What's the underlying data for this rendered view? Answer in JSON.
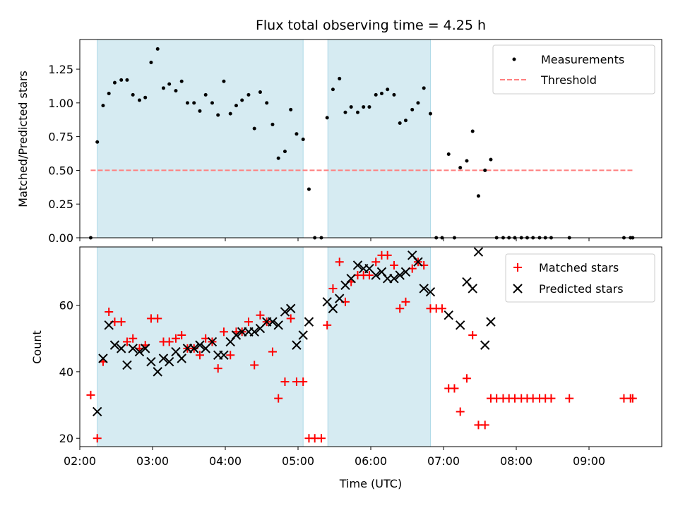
{
  "figure_title": "Flux total observing time = 4.25 h",
  "colors": {
    "shade": "#add8e6",
    "measurement": "#000000",
    "threshold": "#ff7f7f",
    "matched": "#ff0000",
    "predicted": "#000000"
  },
  "chart_data": [
    {
      "type": "scatter",
      "ylabel": "Matched/Predicted stars",
      "xlim": [
        2.0,
        10.0
      ],
      "ylim": [
        0.0,
        1.47
      ],
      "yticks": [
        0.0,
        0.25,
        0.5,
        0.75,
        1.0,
        1.25
      ],
      "ytick_labels": [
        "0.00",
        "0.25",
        "0.50",
        "0.75",
        "1.00",
        "1.25"
      ],
      "legend_position": "top-right",
      "shaded_spans": [
        [
          2.24,
          5.07
        ],
        [
          5.41,
          6.82
        ]
      ],
      "threshold": {
        "name": "Threshold",
        "y": 0.5,
        "x": [
          2.15,
          9.6
        ]
      },
      "series": [
        {
          "name": "Measurements",
          "x": [
            2.15,
            2.24,
            2.32,
            2.4,
            2.48,
            2.57,
            2.65,
            2.73,
            2.82,
            2.9,
            2.98,
            3.07,
            3.15,
            3.23,
            3.32,
            3.4,
            3.48,
            3.57,
            3.65,
            3.73,
            3.82,
            3.9,
            3.98,
            4.07,
            4.15,
            4.23,
            4.32,
            4.4,
            4.48,
            4.57,
            4.65,
            4.73,
            4.82,
            4.9,
            4.98,
            5.07,
            5.15,
            5.23,
            5.32,
            5.4,
            5.48,
            5.57,
            5.65,
            5.73,
            5.82,
            5.9,
            5.98,
            6.07,
            6.15,
            6.23,
            6.32,
            6.4,
            6.48,
            6.57,
            6.65,
            6.73,
            6.82,
            6.9,
            6.98,
            7.07,
            7.15,
            7.23,
            7.32,
            7.4,
            7.48,
            7.57,
            7.65,
            7.73,
            7.82,
            7.9,
            7.98,
            8.07,
            8.15,
            8.23,
            8.32,
            8.4,
            8.48,
            8.73,
            9.48,
            9.57,
            9.6
          ],
          "y": [
            0.0,
            0.71,
            0.98,
            1.07,
            1.15,
            1.17,
            1.17,
            1.06,
            1.02,
            1.04,
            1.3,
            1.4,
            1.11,
            1.14,
            1.09,
            1.16,
            1.0,
            1.0,
            0.94,
            1.06,
            1.0,
            0.91,
            1.16,
            0.92,
            0.98,
            1.02,
            1.06,
            0.81,
            1.08,
            1.0,
            0.84,
            0.59,
            0.64,
            0.95,
            0.77,
            0.73,
            0.36,
            0.0,
            0.0,
            0.89,
            1.1,
            1.18,
            0.93,
            0.97,
            0.93,
            0.97,
            0.97,
            1.06,
            1.07,
            1.1,
            1.06,
            0.85,
            0.87,
            0.95,
            1.0,
            1.11,
            0.92,
            0.0,
            0.0,
            0.62,
            0.0,
            0.52,
            0.57,
            0.79,
            0.31,
            0.5,
            0.58,
            0.0,
            0.0,
            0.0,
            0.0,
            0.0,
            0.0,
            0.0,
            0.0,
            0.0,
            0.0,
            0.0,
            0.0,
            0.0,
            0.0
          ]
        }
      ]
    },
    {
      "type": "scatter",
      "ylabel": "Count",
      "xlabel": "Time (UTC)",
      "xlim": [
        2.0,
        10.0
      ],
      "ylim": [
        17.5,
        77.5
      ],
      "yticks": [
        20,
        40,
        60
      ],
      "ytick_labels": [
        "20",
        "40",
        "60"
      ],
      "xticks": [
        2,
        3,
        4,
        5,
        6,
        7,
        8,
        9
      ],
      "xtick_labels": [
        "02:00",
        "03:00",
        "04:00",
        "05:00",
        "06:00",
        "07:00",
        "08:00",
        "09:00"
      ],
      "legend_position": "top-right",
      "shaded_spans": [
        [
          2.24,
          5.07
        ],
        [
          5.41,
          6.82
        ]
      ],
      "series": [
        {
          "name": "Matched stars",
          "marker": "plus",
          "x": [
            2.15,
            2.24,
            2.32,
            2.4,
            2.48,
            2.57,
            2.65,
            2.73,
            2.82,
            2.9,
            2.98,
            3.07,
            3.15,
            3.23,
            3.32,
            3.4,
            3.48,
            3.57,
            3.65,
            3.73,
            3.82,
            3.9,
            3.98,
            4.07,
            4.15,
            4.23,
            4.32,
            4.4,
            4.48,
            4.57,
            4.65,
            4.73,
            4.82,
            4.9,
            4.98,
            5.07,
            5.15,
            5.23,
            5.32,
            5.4,
            5.48,
            5.57,
            5.65,
            5.73,
            5.82,
            5.9,
            5.98,
            6.07,
            6.15,
            6.23,
            6.32,
            6.4,
            6.48,
            6.57,
            6.65,
            6.73,
            6.82,
            6.9,
            6.98,
            7.07,
            7.15,
            7.23,
            7.32,
            7.4,
            7.48,
            7.57,
            7.65,
            7.73,
            7.82,
            7.9,
            7.98,
            8.07,
            8.15,
            8.23,
            8.32,
            8.4,
            8.48,
            8.73,
            9.48,
            9.57,
            9.6
          ],
          "y": [
            33,
            20,
            43,
            58,
            55,
            55,
            49,
            50,
            47,
            48,
            56,
            56,
            49,
            49,
            50,
            51,
            47,
            47,
            45,
            50,
            49,
            41,
            52,
            45,
            52,
            52,
            55,
            42,
            57,
            55,
            46,
            32,
            37,
            56,
            37,
            37,
            20,
            20,
            20,
            54,
            65,
            73,
            61,
            67,
            69,
            69,
            69,
            73,
            75,
            75,
            72,
            59,
            61,
            71,
            73,
            72,
            59,
            59,
            59,
            35,
            35,
            28,
            38,
            51,
            24,
            24,
            32,
            32,
            32,
            32,
            32,
            32,
            32,
            32,
            32,
            32,
            32,
            32,
            32,
            32,
            32
          ]
        },
        {
          "name": "Predicted stars",
          "marker": "x",
          "x": [
            2.24,
            2.32,
            2.4,
            2.48,
            2.57,
            2.65,
            2.73,
            2.82,
            2.9,
            2.98,
            3.07,
            3.15,
            3.23,
            3.32,
            3.4,
            3.48,
            3.57,
            3.65,
            3.73,
            3.82,
            3.9,
            3.98,
            4.07,
            4.15,
            4.23,
            4.32,
            4.4,
            4.48,
            4.57,
            4.65,
            4.73,
            4.82,
            4.9,
            4.98,
            5.07,
            5.15,
            5.4,
            5.48,
            5.57,
            5.65,
            5.73,
            5.82,
            5.9,
            5.98,
            6.07,
            6.15,
            6.23,
            6.32,
            6.4,
            6.48,
            6.57,
            6.65,
            6.73,
            6.82,
            7.07,
            7.23,
            7.32,
            7.4,
            7.48,
            7.57,
            7.65
          ],
          "y": [
            28,
            44,
            54,
            48,
            47,
            42,
            47,
            46,
            47,
            43,
            40,
            44,
            43,
            46,
            44,
            47,
            47,
            48,
            47,
            49,
            45,
            45,
            49,
            51,
            52,
            52,
            52,
            53,
            55,
            55,
            54,
            58,
            59,
            48,
            51,
            55,
            61,
            59,
            62,
            66,
            68,
            72,
            71,
            71,
            69,
            70,
            68,
            68,
            69,
            70,
            75,
            73,
            65,
            64,
            57,
            54,
            67,
            65,
            76,
            48,
            55
          ]
        }
      ]
    }
  ]
}
